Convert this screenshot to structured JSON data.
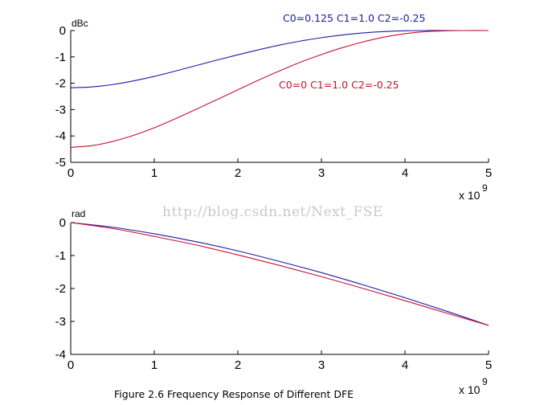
{
  "watermark": "http://blog.csdn.net/Next_FSE",
  "caption": "Figure 2.6 Frequency Response of Different DFE",
  "colors": {
    "blue": "#1a1aa8",
    "red": "#c8102e",
    "axis": "#000000"
  },
  "chart_data": [
    {
      "type": "line",
      "title": "",
      "ylabel": "dBc",
      "xlabel": "",
      "x_multiplier": {
        "base": "x 10",
        "exponent": "9"
      },
      "xlim": [
        0,
        5
      ],
      "ylim": [
        -5,
        0
      ],
      "xticks": [
        0,
        1,
        2,
        3,
        4,
        5
      ],
      "yticks": [
        0,
        -1,
        -2,
        -3,
        -4,
        -5
      ],
      "series": [
        {
          "name": "C0=0.125 C1=1.0 C2=-0.25",
          "color": "#1a1aa8",
          "x": [
            0,
            0.25,
            0.5,
            0.75,
            1.0,
            1.25,
            1.5,
            1.75,
            2.0,
            2.25,
            2.5,
            2.75,
            3.0,
            3.25,
            3.5,
            3.75,
            4.0,
            4.25,
            4.5,
            4.7,
            5.0
          ],
          "y": [
            -2.17,
            -2.14,
            -2.05,
            -1.91,
            -1.74,
            -1.54,
            -1.33,
            -1.12,
            -0.92,
            -0.73,
            -0.55,
            -0.4,
            -0.27,
            -0.17,
            -0.09,
            -0.04,
            -0.01,
            0,
            0,
            0,
            0
          ]
        },
        {
          "name": "C0=0 C1=1.0 C2=-0.25",
          "color": "#c8102e",
          "x": [
            0,
            0.25,
            0.5,
            0.75,
            1.0,
            1.25,
            1.5,
            1.75,
            2.0,
            2.25,
            2.5,
            2.75,
            3.0,
            3.25,
            3.5,
            3.75,
            4.0,
            4.25,
            4.5,
            4.7,
            5.0
          ],
          "y": [
            -4.43,
            -4.37,
            -4.21,
            -3.98,
            -3.69,
            -3.35,
            -2.99,
            -2.62,
            -2.25,
            -1.88,
            -1.53,
            -1.2,
            -0.91,
            -0.65,
            -0.43,
            -0.25,
            -0.12,
            -0.04,
            -0.01,
            0,
            0
          ]
        }
      ],
      "annotations": [
        {
          "text": "C0=0.125 C1=1.0 C2=-0.25",
          "color": "#1a1aa8"
        },
        {
          "text": "C0=0 C1=1.0 C2=-0.25",
          "color": "#c8102e"
        }
      ]
    },
    {
      "type": "line",
      "title": "",
      "ylabel": "rad",
      "xlabel": "",
      "x_multiplier": {
        "base": "x 10",
        "exponent": "9"
      },
      "xlim": [
        0,
        5
      ],
      "ylim": [
        -4,
        0
      ],
      "xticks": [
        0,
        1,
        2,
        3,
        4,
        5
      ],
      "yticks": [
        0,
        -1,
        -2,
        -3,
        -4
      ],
      "series": [
        {
          "color": "#1a1aa8",
          "x": [
            0,
            0.5,
            1.0,
            1.5,
            2.0,
            2.5,
            3.0,
            3.5,
            4.0,
            4.5,
            5.0
          ],
          "y": [
            0,
            -0.14,
            -0.34,
            -0.58,
            -0.86,
            -1.18,
            -1.52,
            -1.89,
            -2.28,
            -2.69,
            -3.12
          ]
        },
        {
          "color": "#c8102e",
          "x": [
            0,
            0.5,
            1.0,
            1.5,
            2.0,
            2.5,
            3.0,
            3.5,
            4.0,
            4.5,
            5.0
          ],
          "y": [
            0,
            -0.18,
            -0.42,
            -0.68,
            -0.98,
            -1.3,
            -1.64,
            -2.0,
            -2.37,
            -2.75,
            -3.12
          ]
        }
      ]
    }
  ]
}
